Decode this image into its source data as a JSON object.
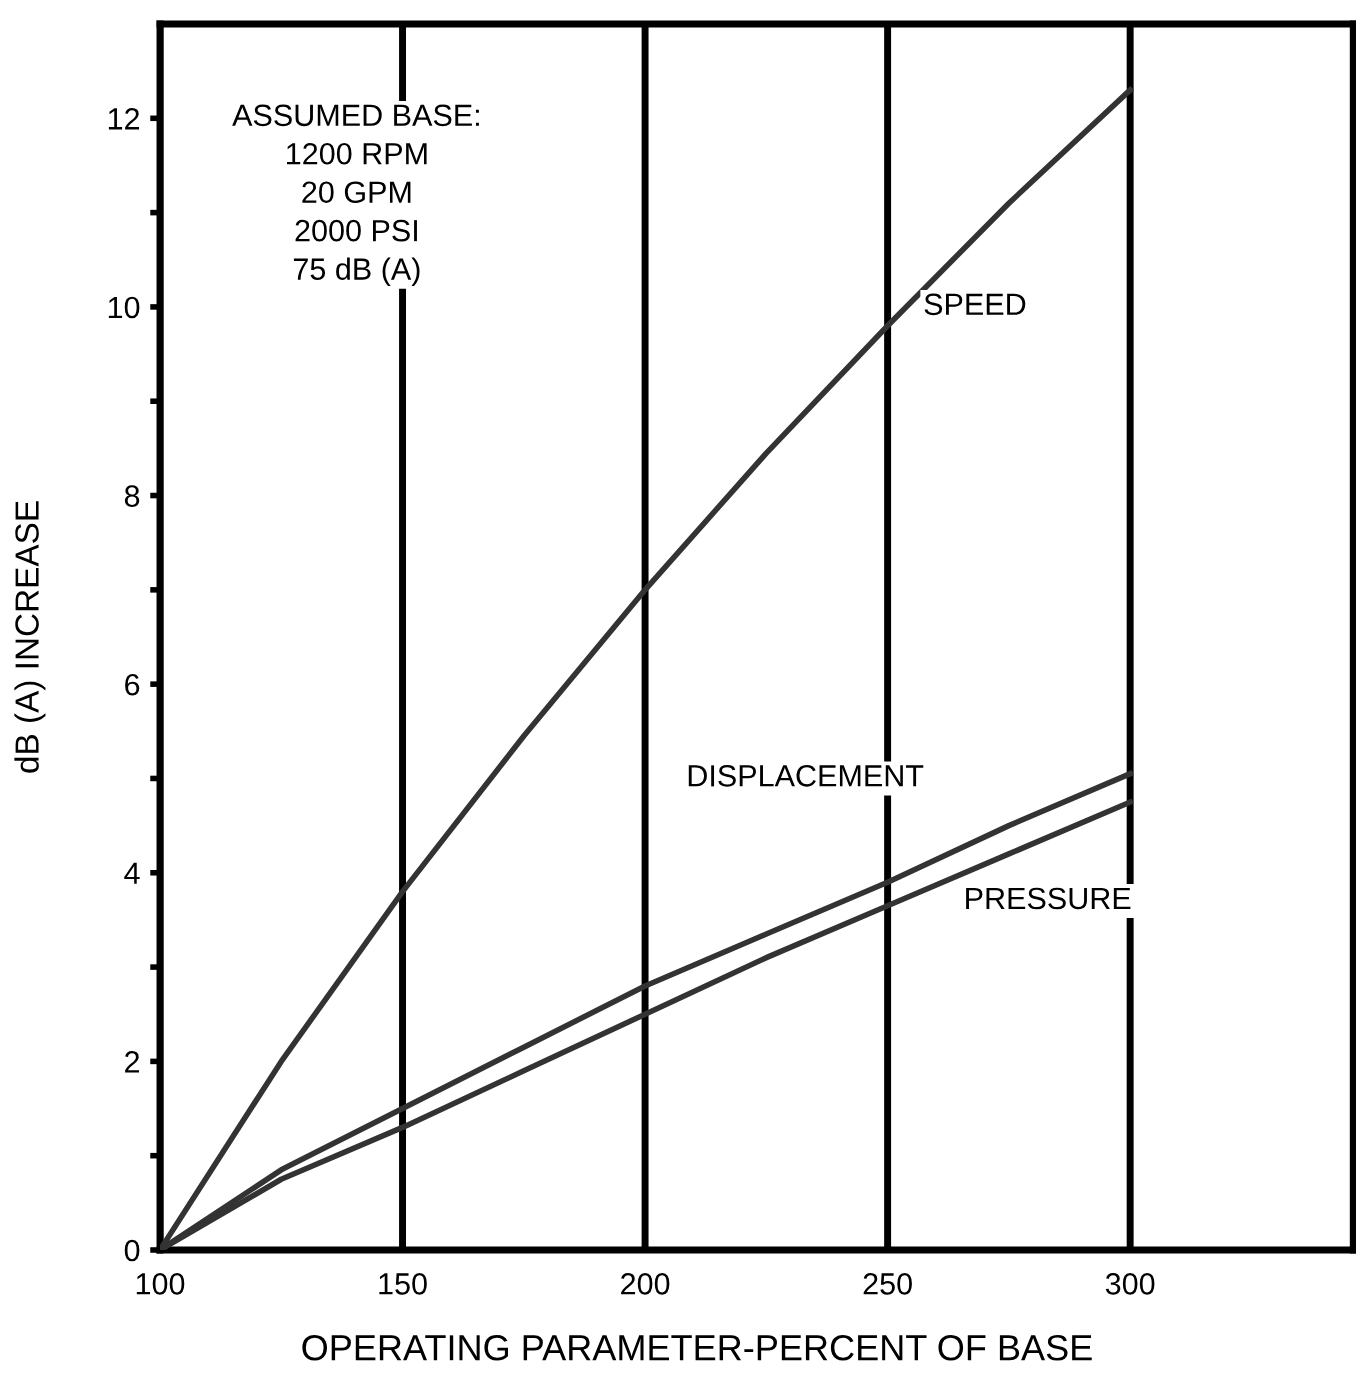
{
  "chart_data": {
    "type": "line",
    "xlabel": "OPERATING PARAMETER-PERCENT OF BASE",
    "ylabel": "dB (A) INCREASE",
    "series": [
      {
        "name": "SPEED",
        "color": "#333333",
        "x": [
          100,
          110,
          125,
          150,
          175,
          200,
          225,
          250,
          275,
          300
        ],
        "values": [
          0,
          0.8,
          2.0,
          3.8,
          5.45,
          7.0,
          8.45,
          9.8,
          11.1,
          12.3
        ]
      },
      {
        "color": "#333333",
        "x": [
          100,
          125,
          150,
          175,
          200,
          225,
          250,
          275,
          300
        ],
        "name": "DISPLACEMENT",
        "values": [
          0,
          0.85,
          1.5,
          2.15,
          2.8,
          3.35,
          3.9,
          4.5,
          5.05
        ]
      },
      {
        "color": "#333333",
        "x": [
          100,
          125,
          150,
          175,
          200,
          225,
          250,
          275,
          300
        ],
        "name": "PRESSURE",
        "values": [
          0,
          0.75,
          1.3,
          1.9,
          2.5,
          3.1,
          3.65,
          4.2,
          4.75
        ]
      }
    ],
    "annotations": [
      "ASSUMED BASE:\n1200 RPM\n20 GPM\n2000 PSI\n75 dB (A)"
    ],
    "xlim": [
      100,
      346
    ],
    "xticks": [
      100,
      150,
      200,
      250,
      300
    ],
    "ylim": [
      0,
      13
    ],
    "yticks": [
      0,
      {
        "value": 1,
        "label": null
      },
      2,
      {
        "value": 3,
        "label": null
      },
      4,
      {
        "value": 5,
        "label": null
      },
      6,
      {
        "value": 7,
        "label": null
      },
      8,
      {
        "value": 9,
        "label": null
      },
      10,
      {
        "value": 11,
        "label": null
      },
      12
    ],
    "grid": "x",
    "legend": false,
    "marker": "none",
    "line_style": "solid"
  }
}
